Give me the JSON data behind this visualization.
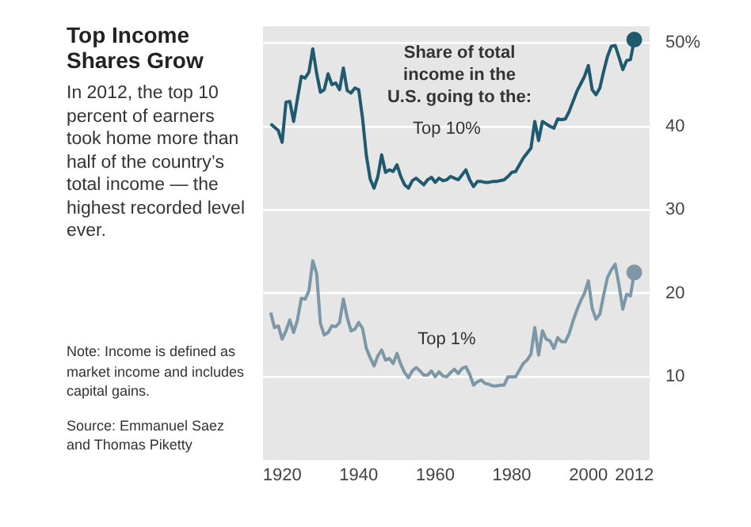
{
  "chart_data": {
    "type": "line",
    "title": "Top Income Shares Grow",
    "subtitle": "In 2012, the top 10 percent of earners took home more than half of the country’s total income — the highest recorded level ever.",
    "legend_title": "Share of total income in the U.S. going to the:",
    "annotations": [
      "Note: Income is defined as market income and includes capital gains.",
      "Source: Emmanuel Saez and Thomas Piketty"
    ],
    "x": [
      1917,
      1918,
      1919,
      1920,
      1921,
      1922,
      1923,
      1924,
      1925,
      1926,
      1927,
      1928,
      1929,
      1930,
      1931,
      1932,
      1933,
      1934,
      1935,
      1936,
      1937,
      1938,
      1939,
      1940,
      1941,
      1942,
      1943,
      1944,
      1945,
      1946,
      1947,
      1948,
      1949,
      1950,
      1951,
      1952,
      1953,
      1954,
      1955,
      1956,
      1957,
      1958,
      1959,
      1960,
      1961,
      1962,
      1963,
      1964,
      1965,
      1966,
      1967,
      1968,
      1969,
      1970,
      1971,
      1972,
      1973,
      1974,
      1975,
      1976,
      1977,
      1978,
      1979,
      1980,
      1981,
      1982,
      1983,
      1984,
      1985,
      1986,
      1987,
      1988,
      1989,
      1990,
      1991,
      1992,
      1993,
      1994,
      1995,
      1996,
      1997,
      1998,
      1999,
      2000,
      2001,
      2002,
      2003,
      2004,
      2005,
      2006,
      2007,
      2008,
      2009,
      2010,
      2011,
      2012
    ],
    "series": [
      {
        "name": "Top 10%",
        "color": "#1f5a6e",
        "values": [
          40.3,
          39.9,
          39.5,
          38.1,
          42.9,
          43.0,
          40.6,
          43.3,
          46.0,
          45.8,
          46.5,
          49.3,
          46.4,
          44.1,
          44.4,
          46.3,
          45.0,
          45.2,
          44.4,
          47.0,
          44.3,
          44.0,
          44.6,
          44.4,
          41.0,
          36.5,
          33.7,
          32.6,
          34.0,
          36.6,
          34.5,
          34.8,
          34.6,
          35.4,
          34.0,
          33.0,
          32.6,
          33.5,
          33.8,
          33.4,
          33.0,
          33.6,
          33.9,
          33.3,
          33.8,
          33.5,
          33.6,
          34.0,
          33.8,
          33.6,
          34.2,
          34.8,
          33.6,
          32.8,
          33.4,
          33.4,
          33.3,
          33.3,
          33.4,
          33.4,
          33.5,
          33.6,
          34.0,
          34.5,
          34.6,
          35.4,
          36.2,
          36.8,
          37.4,
          40.6,
          38.3,
          40.6,
          40.3,
          40.0,
          39.8,
          40.9,
          40.8,
          40.9,
          41.8,
          43.0,
          44.2,
          45.1,
          46.0,
          47.3,
          44.4,
          43.8,
          44.6,
          46.6,
          48.4,
          49.6,
          49.7,
          48.3,
          46.8,
          47.9,
          48.0,
          50.4
        ]
      },
      {
        "name": "Top 1%",
        "color": "#7c97a6",
        "values": [
          17.7,
          15.9,
          16.1,
          14.5,
          15.5,
          16.8,
          15.3,
          16.8,
          19.4,
          19.3,
          20.3,
          23.9,
          22.4,
          16.4,
          15.0,
          15.3,
          16.1,
          16.0,
          16.5,
          19.3,
          17.1,
          15.5,
          15.7,
          16.5,
          15.8,
          13.4,
          12.3,
          11.3,
          12.5,
          13.2,
          12.0,
          12.2,
          11.6,
          12.8,
          11.5,
          10.5,
          9.9,
          10.7,
          11.1,
          10.7,
          10.2,
          10.2,
          10.7,
          10.0,
          10.6,
          10.1,
          10.0,
          10.5,
          10.9,
          10.4,
          11.0,
          11.2,
          10.3,
          9.0,
          9.4,
          9.6,
          9.2,
          9.1,
          8.9,
          8.9,
          9.0,
          9.0,
          10.0,
          10.0,
          10.0,
          10.8,
          11.6,
          12.0,
          12.7,
          15.9,
          12.6,
          15.5,
          14.5,
          14.3,
          13.4,
          14.7,
          14.2,
          14.2,
          15.2,
          16.7,
          18.0,
          19.1,
          20.0,
          21.5,
          18.2,
          16.9,
          17.5,
          19.8,
          21.9,
          22.8,
          23.5,
          21.0,
          18.1,
          19.9,
          19.7,
          22.5
        ]
      }
    ],
    "xlim": [
      1915,
      2016
    ],
    "xticks": [
      1920,
      1940,
      1960,
      1980,
      2000,
      2012
    ],
    "ylim": [
      0,
      52
    ],
    "yticks": [
      10,
      20,
      30,
      40,
      {
        "value": 50,
        "label": "50%"
      }
    ],
    "grid": "y",
    "legend": false
  }
}
